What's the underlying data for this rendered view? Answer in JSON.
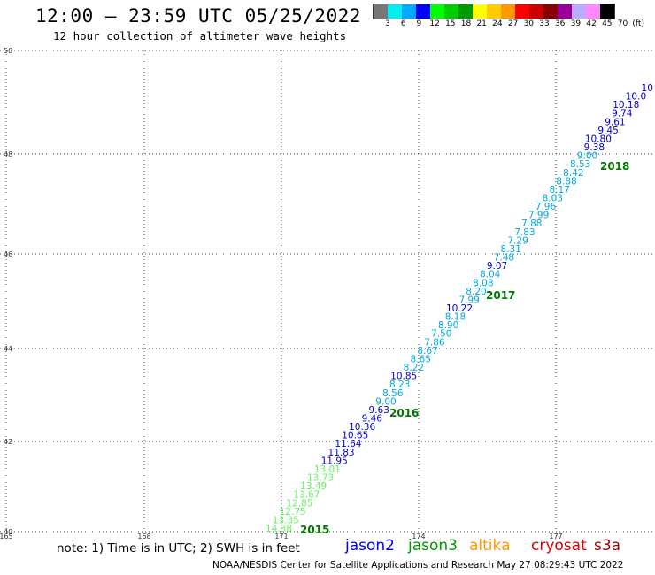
{
  "header": {
    "title": "12:00 – 23:59 UTC 05/25/2022",
    "subtitle": "12 hour collection of altimeter wave heights"
  },
  "colorbar": {
    "colors": [
      "#777777",
      "#00eeee",
      "#00aaff",
      "#0000ff",
      "#00ff00",
      "#00cc00",
      "#009900",
      "#ffff00",
      "#ffcc00",
      "#ff9900",
      "#ff0000",
      "#cc0000",
      "#880000",
      "#990099",
      "#bbaaff",
      "#ff88ff",
      "#000000"
    ],
    "labels": [
      "3",
      "6",
      "9",
      "12",
      "15",
      "18",
      "21",
      "24",
      "27",
      "30",
      "33",
      "36",
      "39",
      "42",
      "45",
      "70",
      "(ft)"
    ]
  },
  "map": {
    "lat_labels": [
      "50",
      "48",
      "46",
      "44",
      "42",
      "40"
    ],
    "lon_labels": [
      "165",
      "168",
      "171",
      "174",
      "177"
    ],
    "year_labels": [
      "2018",
      "2017",
      "2016",
      "2015"
    ],
    "wave_heights": [
      {
        "v": "10",
        "c": "#0000cc"
      },
      {
        "v": "10.0",
        "c": "#0000cc"
      },
      {
        "v": "10.18",
        "c": "#0000cc"
      },
      {
        "v": "9.74",
        "c": "#0000cc"
      },
      {
        "v": "9.61",
        "c": "#0000cc"
      },
      {
        "v": "9.45",
        "c": "#0000cc"
      },
      {
        "v": "10.80",
        "c": "#0000cc"
      },
      {
        "v": "9.38",
        "c": "#0000cc"
      },
      {
        "v": "9.00",
        "c": "#00aadd"
      },
      {
        "v": "8.53",
        "c": "#00aadd"
      },
      {
        "v": "8.42",
        "c": "#00aadd"
      },
      {
        "v": "8.88",
        "c": "#00aadd"
      },
      {
        "v": "8.17",
        "c": "#00aadd"
      },
      {
        "v": "8.03",
        "c": "#00aadd"
      },
      {
        "v": "7.96",
        "c": "#00aadd"
      },
      {
        "v": "7.99",
        "c": "#00aadd"
      },
      {
        "v": "7.88",
        "c": "#00aadd"
      },
      {
        "v": "7.83",
        "c": "#00aadd"
      },
      {
        "v": "7.29",
        "c": "#00aadd"
      },
      {
        "v": "8.31",
        "c": "#00aadd"
      },
      {
        "v": "7.48",
        "c": "#00aadd"
      },
      {
        "v": "9.07",
        "c": "#0000cc"
      },
      {
        "v": "8.04",
        "c": "#00aadd"
      },
      {
        "v": "8.08",
        "c": "#00aadd"
      },
      {
        "v": "8.20",
        "c": "#00aadd"
      },
      {
        "v": "7.99",
        "c": "#00aadd"
      },
      {
        "v": "10.22",
        "c": "#0000cc"
      },
      {
        "v": "8.18",
        "c": "#00aadd"
      },
      {
        "v": "8.90",
        "c": "#00aadd"
      },
      {
        "v": "7.50",
        "c": "#00aadd"
      },
      {
        "v": "7.86",
        "c": "#00aadd"
      },
      {
        "v": "8.67",
        "c": "#00aadd"
      },
      {
        "v": "8.65",
        "c": "#00aadd"
      },
      {
        "v": "8.22",
        "c": "#00aadd"
      },
      {
        "v": "10.85",
        "c": "#0000cc"
      },
      {
        "v": "8.23",
        "c": "#00aadd"
      },
      {
        "v": "8.56",
        "c": "#00aadd"
      },
      {
        "v": "9.00",
        "c": "#00aadd"
      },
      {
        "v": "9.63",
        "c": "#0000cc"
      },
      {
        "v": "9.46",
        "c": "#0000cc"
      },
      {
        "v": "10.36",
        "c": "#0000cc"
      },
      {
        "v": "10.65",
        "c": "#0000cc"
      },
      {
        "v": "11.64",
        "c": "#0000cc"
      },
      {
        "v": "11.83",
        "c": "#0000cc"
      },
      {
        "v": "11.95",
        "c": "#0000cc"
      },
      {
        "v": "13.01",
        "c": "#66ee66"
      },
      {
        "v": "13.73",
        "c": "#66ee66"
      },
      {
        "v": "13.49",
        "c": "#66ee66"
      },
      {
        "v": "13.67",
        "c": "#66ee66"
      },
      {
        "v": "12.85",
        "c": "#66ee66"
      },
      {
        "v": "12.75",
        "c": "#66ee66"
      },
      {
        "v": "13.35",
        "c": "#66ee66"
      },
      {
        "v": "14.38",
        "c": "#66ee66"
      }
    ]
  },
  "footer": {
    "note": "note:  1) Time is in UTC;  2) SWH is in feet",
    "legend": [
      {
        "label": "jason2",
        "color": "#0000ee"
      },
      {
        "label": "jason3",
        "color": "#009900"
      },
      {
        "label": "altika",
        "color": "#ff9900"
      },
      {
        "label": "cryosat",
        "color": "#dd0000"
      },
      {
        "label": "s3a",
        "color": "#990000"
      }
    ],
    "credit": "NOAA/NESDIS Center for Satellite Applications and Research    May 27 08:29:43 UTC 2022"
  }
}
